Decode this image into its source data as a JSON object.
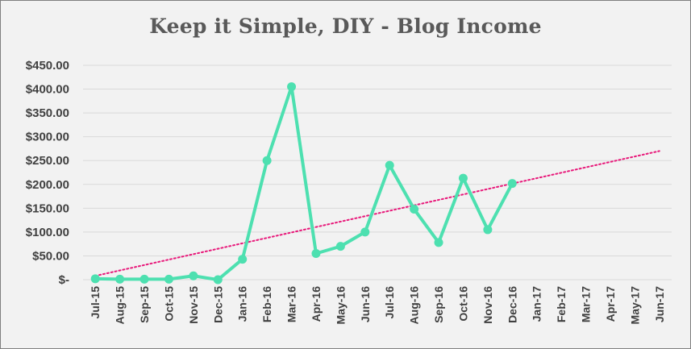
{
  "chart_data": {
    "type": "line",
    "title": "Keep it Simple, DIY - Blog Income",
    "xlabel": "",
    "ylabel": "",
    "categories": [
      "Jul-15",
      "Aug-15",
      "Sep-15",
      "Oct-15",
      "Nov-15",
      "Dec-15",
      "Jan-16",
      "Feb-16",
      "Mar-16",
      "Apr-16",
      "May-16",
      "Jun-16",
      "Jul-16",
      "Aug-16",
      "Sep-16",
      "Oct-16",
      "Nov-16",
      "Dec-16",
      "Jan-17",
      "Feb-17",
      "Mar-17",
      "Apr-17",
      "May-17",
      "Jun-17"
    ],
    "series": [
      {
        "values": [
          2,
          1,
          1,
          1,
          8,
          0,
          43,
          250,
          405,
          55,
          70,
          100,
          240,
          148,
          78,
          213,
          105,
          202,
          null,
          null,
          null,
          null,
          null,
          null
        ],
        "color": "#4de0b0"
      }
    ],
    "trendline": {
      "type": "linear",
      "color": "#e8197a",
      "style": "dotted",
      "start": 8,
      "end": 270
    },
    "yticks": [
      "$-",
      "$50.00",
      "$100.00",
      "$150.00",
      "$200.00",
      "$250.00",
      "$300.00",
      "$350.00",
      "$400.00",
      "$450.00"
    ],
    "ylim": [
      0,
      450
    ],
    "grid": true,
    "legend": "none"
  }
}
